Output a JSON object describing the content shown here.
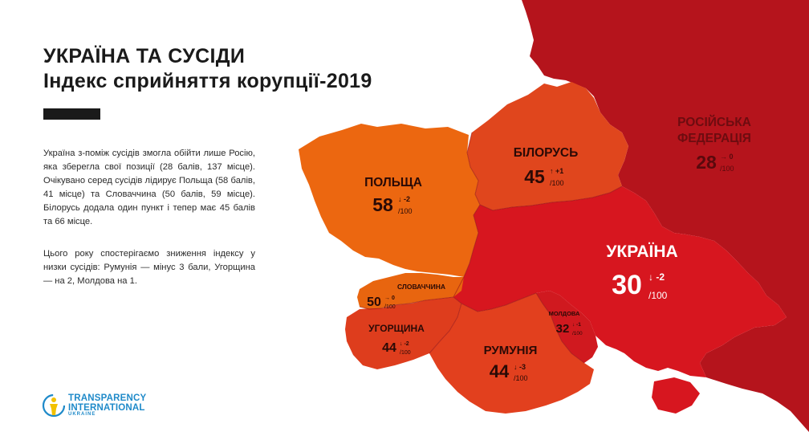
{
  "title": {
    "line1": "УКРАЇНА ТА СУСІДИ",
    "line2": "Індекс сприйняття корупції-2019"
  },
  "paragraphs": [
    "Україна з-поміж сусідів змогла обійти лише Росію, яка зберегла свої позиції (28 балів, 137 місце). Очікувано серед сусідів лідирує Польща (58 балів, 41 місце) та Словаччина (50 балів, 59 місце). Білорусь додала один пункт і тепер має 45 балів та 66 місце.",
    "Цього року спостерігаємо зниження індексу у низки сусідів: Румунія — мінус 3 бали, Угорщина — на 2, Молдова на 1."
  ],
  "countries": {
    "russia": {
      "name_line1": "РОСІЙСЬКА",
      "name_line2": "ФЕДЕРАЦІЯ",
      "score": "28",
      "change": "→ 0",
      "max": "/100",
      "color": "#b5141c"
    },
    "belarus": {
      "name": "БІЛОРУСЬ",
      "score": "45",
      "change": "↑ +1",
      "max": "/100",
      "color": "#e0461d"
    },
    "poland": {
      "name": "ПОЛЬЩА",
      "score": "58",
      "change": "↓ -2",
      "max": "/100",
      "color": "#ec6710"
    },
    "ukraine": {
      "name": "УКРАЇНА",
      "score": "30",
      "change": "↓ -2",
      "max": "/100",
      "color": "#d7161f"
    },
    "slovakia": {
      "name": "СЛОВАЧЧИНА",
      "score": "50",
      "change": "→ 0",
      "max": "/100",
      "color": "#e8650f"
    },
    "hungary": {
      "name": "УГОРЩИНА",
      "score": "44",
      "change": "↓ -2",
      "max": "/100",
      "color": "#de3d1d"
    },
    "romania": {
      "name": "РУМУНІЯ",
      "score": "44",
      "change": "↓ -3",
      "max": "/100",
      "color": "#e2401e"
    },
    "moldova": {
      "name": "МОЛДОВА",
      "score": "32",
      "change": "↓ -1",
      "max": "/100",
      "color": "#d0191f"
    }
  },
  "logo": {
    "line1": "TRANSPARENCY",
    "line2": "INTERNATIONAL",
    "sub": "UKRAINE",
    "icon": "transparency-figure-icon"
  }
}
